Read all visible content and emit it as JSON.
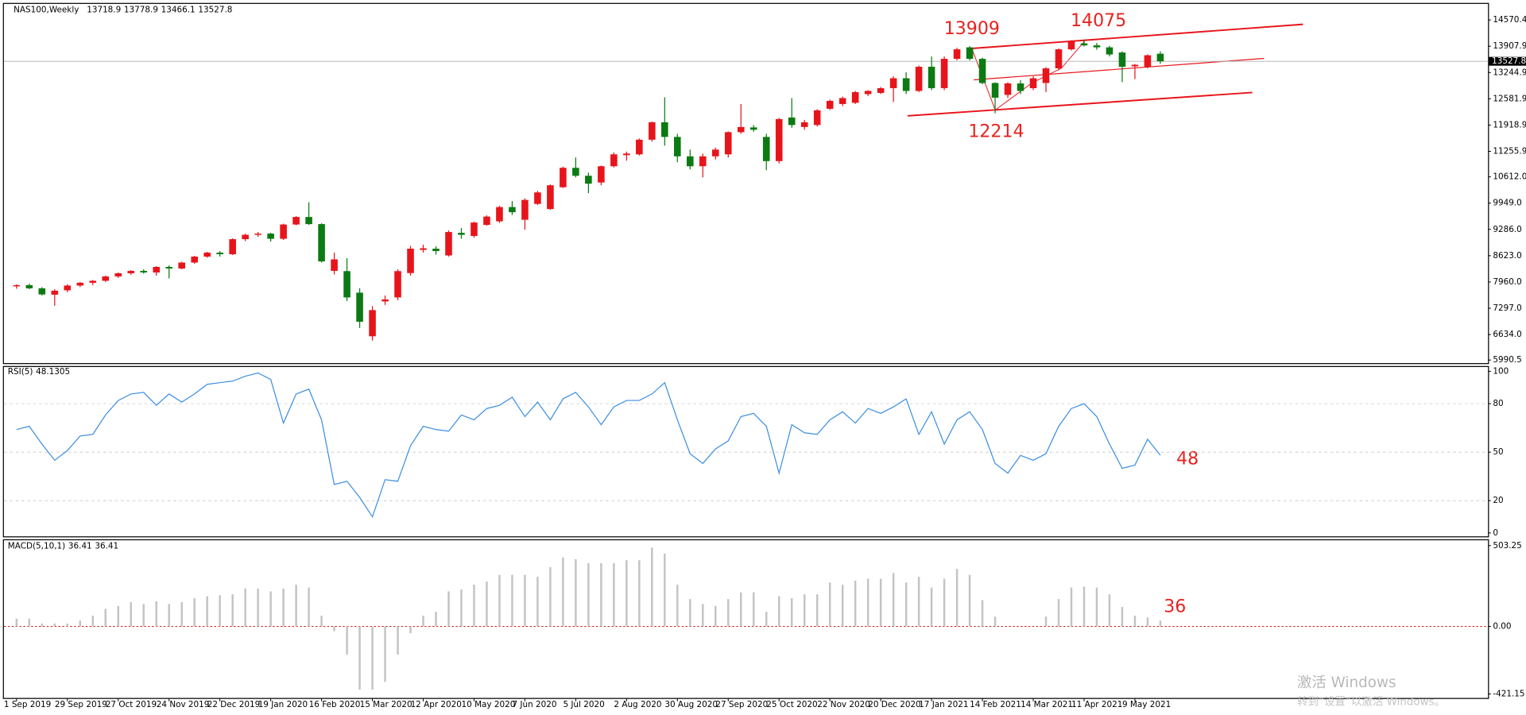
{
  "chart_data": [
    {
      "type": "candlestick",
      "title": "NAS100,Weekly",
      "up_color": "#e8141b",
      "down_color": "#0b7a12",
      "ylim": [
        5901,
        14988
      ],
      "yticks": [
        14570.4,
        13907.9,
        13244.9,
        12581.9,
        11918.9,
        11255.9,
        {
          "value": 10612,
          "label": "10612.0"
        },
        {
          "value": 9949,
          "label": "9949.0"
        },
        {
          "value": 9286,
          "label": "9286.0"
        },
        {
          "value": 8623,
          "label": "8623.0"
        },
        {
          "value": 7960,
          "label": "7960.0"
        },
        {
          "value": 7297,
          "label": "7297.0"
        },
        {
          "value": 6634,
          "label": "6634.0"
        },
        5990.5
      ],
      "annotations": [
        "13909",
        "14075",
        "12214"
      ],
      "ohlc": [
        [
          7850,
          7900,
          7790,
          7880
        ],
        [
          7880,
          7920,
          7780,
          7800
        ],
        [
          7800,
          7830,
          7620,
          7645
        ],
        [
          7640,
          7780,
          7360,
          7740
        ],
        [
          7750,
          7900,
          7700,
          7870
        ],
        [
          7870,
          7960,
          7830,
          7940
        ],
        [
          7940,
          8010,
          7880,
          7990
        ],
        [
          7990,
          8120,
          7960,
          8100
        ],
        [
          8100,
          8200,
          8060,
          8180
        ],
        [
          8180,
          8260,
          8140,
          8240
        ],
        [
          8240,
          8280,
          8170,
          8200
        ],
        [
          8200,
          8360,
          8120,
          8340
        ],
        [
          8340,
          8380,
          8050,
          8300
        ],
        [
          8300,
          8470,
          8280,
          8450
        ],
        [
          8450,
          8620,
          8420,
          8600
        ],
        [
          8600,
          8720,
          8570,
          8700
        ],
        [
          8700,
          8740,
          8600,
          8660
        ],
        [
          8660,
          9060,
          8640,
          9040
        ],
        [
          9040,
          9180,
          8990,
          9150
        ],
        [
          9150,
          9220,
          9100,
          9180
        ],
        [
          9180,
          9200,
          8980,
          9050
        ],
        [
          9050,
          9430,
          9020,
          9410
        ],
        [
          9410,
          9620,
          9390,
          9600
        ],
        [
          9600,
          9970,
          9400,
          9420
        ],
        [
          9420,
          9440,
          8450,
          8480
        ],
        [
          8240,
          8700,
          8150,
          8530
        ],
        [
          8234,
          8560,
          7480,
          7570
        ],
        [
          7690,
          7800,
          6800,
          6957
        ],
        [
          6590,
          7350,
          6480,
          7250
        ],
        [
          7470,
          7620,
          7380,
          7520
        ],
        [
          7570,
          8280,
          7500,
          8234
        ],
        [
          8185,
          8870,
          8120,
          8800
        ],
        [
          8770,
          8900,
          8700,
          8810
        ],
        [
          8800,
          8860,
          8650,
          8740
        ],
        [
          8630,
          9260,
          8600,
          9220
        ],
        [
          9200,
          9320,
          9050,
          9150
        ],
        [
          9120,
          9480,
          9080,
          9460
        ],
        [
          9400,
          9640,
          9380,
          9610
        ],
        [
          9490,
          9880,
          9450,
          9850
        ],
        [
          9850,
          10000,
          9650,
          9720
        ],
        [
          9530,
          10070,
          9280,
          10030
        ],
        [
          9930,
          10260,
          9900,
          10220
        ],
        [
          9800,
          10420,
          9780,
          10400
        ],
        [
          10350,
          10870,
          10330,
          10840
        ],
        [
          10840,
          11100,
          10600,
          10640
        ],
        [
          10640,
          10720,
          10200,
          10440
        ],
        [
          10470,
          10900,
          10400,
          10880
        ],
        [
          10880,
          11230,
          10850,
          11180
        ],
        [
          11160,
          11250,
          11020,
          11200
        ],
        [
          11180,
          11580,
          11150,
          11550
        ],
        [
          11550,
          12010,
          11500,
          11990
        ],
        [
          11990,
          12620,
          11400,
          11620
        ],
        [
          11620,
          11700,
          10980,
          11130
        ],
        [
          11130,
          11300,
          10800,
          10880
        ],
        [
          10880,
          11200,
          10600,
          11130
        ],
        [
          11130,
          11350,
          11050,
          11300
        ],
        [
          11180,
          11760,
          11100,
          11740
        ],
        [
          11740,
          12450,
          11700,
          11870
        ],
        [
          11860,
          11920,
          11750,
          11800
        ],
        [
          11620,
          11700,
          10780,
          11010
        ],
        [
          11010,
          12100,
          10950,
          12070
        ],
        [
          12110,
          12600,
          11850,
          11920
        ],
        [
          11870,
          12050,
          11800,
          11990
        ],
        [
          11920,
          12320,
          11880,
          12290
        ],
        [
          12330,
          12560,
          12300,
          12530
        ],
        [
          12450,
          12640,
          12400,
          12600
        ],
        [
          12480,
          12780,
          12450,
          12750
        ],
        [
          12700,
          12800,
          12650,
          12780
        ],
        [
          12730,
          12880,
          12700,
          12850
        ],
        [
          12850,
          13150,
          12500,
          13100
        ],
        [
          13100,
          13250,
          12700,
          12780
        ],
        [
          12780,
          13420,
          12750,
          13390
        ],
        [
          13390,
          13650,
          12800,
          12850
        ],
        [
          12850,
          13650,
          12800,
          13590
        ],
        [
          13590,
          13870,
          13550,
          13830
        ],
        [
          13880,
          13909,
          13550,
          13590
        ],
        [
          13590,
          13620,
          12950,
          12980
        ],
        [
          12980,
          13000,
          12214,
          12610
        ],
        [
          12680,
          13000,
          12600,
          12970
        ],
        [
          12970,
          13050,
          12700,
          12780
        ],
        [
          12850,
          13150,
          12800,
          13100
        ],
        [
          12980,
          13380,
          12750,
          13350
        ],
        [
          13350,
          13850,
          13300,
          13830
        ],
        [
          13830,
          14060,
          13800,
          14030
        ],
        [
          13980,
          14075,
          13900,
          13930
        ],
        [
          13930,
          13990,
          13820,
          13880
        ],
        [
          13880,
          13920,
          13650,
          13700
        ],
        [
          13750,
          13780,
          13000,
          13390
        ],
        [
          13400,
          13460,
          13080,
          13440
        ],
        [
          13390,
          13700,
          13350,
          13680
        ],
        [
          13718.9,
          13778.9,
          13466.1,
          13527.8
        ]
      ]
    },
    {
      "type": "line",
      "title": "RSI(5)",
      "color": "#3d8fe0",
      "ylim": [
        -2.4,
        103
      ],
      "yticks": [
        100,
        80,
        50,
        20,
        0
      ],
      "annotations": [
        "48"
      ],
      "values": [
        64,
        66,
        55,
        45,
        51,
        60,
        61,
        73,
        82,
        86,
        87,
        79,
        86,
        81,
        86,
        92,
        93,
        94,
        97,
        99,
        95,
        68,
        86,
        89,
        70,
        30,
        32,
        22,
        10,
        33,
        32,
        54,
        66,
        64,
        63,
        73,
        70,
        77,
        79,
        84,
        72,
        81,
        70,
        83,
        87,
        78,
        67,
        78,
        82,
        82,
        86,
        93,
        70,
        49,
        43,
        52,
        57,
        72,
        74,
        66,
        37,
        67,
        62,
        61,
        70,
        75,
        68,
        77,
        74,
        78,
        83,
        61,
        75,
        55,
        70,
        75,
        64,
        43,
        37,
        48,
        45,
        49,
        66,
        77,
        80,
        72,
        55,
        40,
        42,
        58,
        48.1305
      ]
    },
    {
      "type": "bar",
      "title": "MACD(5,10,1)",
      "color": "#c3c3c3",
      "signal_last": 36.41,
      "zero_color": "#d02020",
      "ylim": [
        -448.7,
        539.6
      ],
      "yticks": [
        503.25,
        {
          "value": 0,
          "label": "0.00"
        },
        -421.15
      ],
      "annotations": [
        "36"
      ],
      "categories": [
        "1 Sep 2019",
        null,
        null,
        null,
        "29 Sep 2019",
        null,
        null,
        null,
        "27 Oct 2019",
        null,
        null,
        null,
        "24 Nov 2019",
        null,
        null,
        null,
        "22 Dec 2019",
        null,
        null,
        null,
        "19 Jan 2020",
        null,
        null,
        null,
        "16 Feb 2020",
        null,
        null,
        null,
        "15 Mar 2020",
        null,
        null,
        null,
        "12 Apr 2020",
        null,
        null,
        null,
        "10 May 2020",
        null,
        null,
        null,
        "7 Jun 2020",
        null,
        null,
        null,
        "5 Jul 2020",
        null,
        null,
        null,
        "2 Aug 2020",
        null,
        null,
        null,
        "30 Aug 2020",
        null,
        null,
        null,
        "27 Sep 2020",
        null,
        null,
        null,
        "25 Oct 2020",
        null,
        null,
        null,
        "22 Nov 2020",
        null,
        null,
        null,
        "20 Dec 2020",
        null,
        null,
        null,
        "17 Jan 2021",
        null,
        null,
        null,
        "14 Feb 2021",
        null,
        null,
        null,
        "14 Mar 2021",
        null,
        null,
        null,
        "11 Apr 2021",
        null,
        null,
        null,
        "9 May 2021",
        null,
        null
      ],
      "values": [
        48,
        48,
        18,
        18,
        18,
        36,
        67,
        109,
        127,
        151,
        139,
        157,
        139,
        151,
        176,
        188,
        194,
        200,
        236,
        236,
        218,
        236,
        260,
        242,
        67,
        -30,
        -176,
        -394,
        -394,
        -345,
        -176,
        -42,
        67,
        91,
        218,
        230,
        260,
        279,
        321,
        321,
        321,
        309,
        370,
        430,
        418,
        394,
        394,
        394,
        412,
        412,
        491,
        454,
        260,
        170,
        139,
        127,
        170,
        212,
        212,
        91,
        188,
        176,
        200,
        200,
        273,
        260,
        285,
        297,
        297,
        333,
        273,
        309,
        242,
        297,
        358,
        321,
        164,
        61,
        0,
        0,
        0,
        61,
        170,
        242,
        248,
        242,
        200,
        121,
        67,
        55,
        36.41
      ]
    }
  ],
  "watermark": {
    "title": "激活 Windows",
    "subtitle": "转到“设置”以激活 Windows。"
  }
}
